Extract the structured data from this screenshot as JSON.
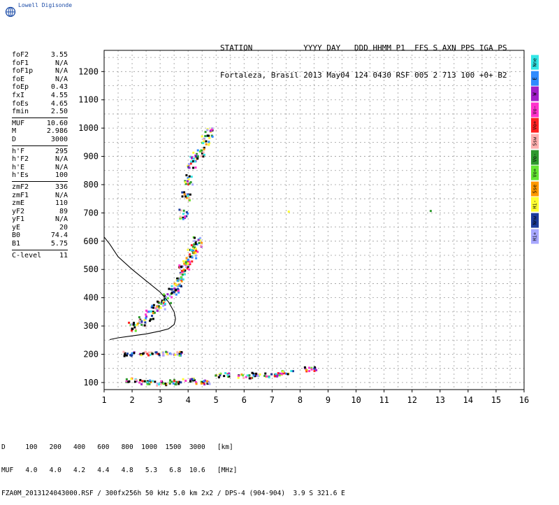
{
  "logo": {
    "text": "Lowell Digisonde"
  },
  "header": {
    "line1": "STATION           YYYY DAY   DDD HHMM P1  FFS S AXN PPS IGA PS",
    "line2": "Fortaleza, Brasil 2013 May04 124 0430 RSF 005 2 713 100 +0+ B2"
  },
  "params": {
    "group1": [
      {
        "k": "foF2",
        "v": "3.55"
      },
      {
        "k": "foF1",
        "v": "N/A"
      },
      {
        "k": "foF1p",
        "v": "N/A"
      },
      {
        "k": "foE",
        "v": "N/A"
      },
      {
        "k": "foEp",
        "v": "0.43"
      },
      {
        "k": "fxI",
        "v": "4.55"
      },
      {
        "k": "foEs",
        "v": "4.65"
      },
      {
        "k": "fmin",
        "v": "2.50"
      }
    ],
    "group2": [
      {
        "k": "MUF",
        "v": "10.60"
      },
      {
        "k": "M",
        "v": "2.986"
      },
      {
        "k": "D",
        "v": "3000"
      }
    ],
    "group3": [
      {
        "k": "h'F",
        "v": "295"
      },
      {
        "k": "h'F2",
        "v": "N/A"
      },
      {
        "k": "h'E",
        "v": "N/A"
      },
      {
        "k": "h'Es",
        "v": "100"
      }
    ],
    "group4": [
      {
        "k": "zmF2",
        "v": "336"
      },
      {
        "k": "zmF1",
        "v": "N/A"
      },
      {
        "k": "zmE",
        "v": "110"
      },
      {
        "k": "yF2",
        "v": "89"
      },
      {
        "k": "yF1",
        "v": "N/A"
      },
      {
        "k": "yE",
        "v": "20"
      },
      {
        "k": "B0",
        "v": "74.4"
      },
      {
        "k": "B1",
        "v": "5.75"
      }
    ],
    "group5": [
      {
        "k": "C-level",
        "v": "11"
      }
    ]
  },
  "legend_tabs": [
    {
      "label": "Nne",
      "color": "#33e6e6"
    },
    {
      "label": "E",
      "color": "#2e8bff"
    },
    {
      "label": "W",
      "color": "#a020c8"
    },
    {
      "label": "Vo-",
      "color": "#ff33cc"
    },
    {
      "label": "Vo+",
      "color": "#ff2222"
    },
    {
      "label": "Ssw",
      "color": "#ffb0b0"
    },
    {
      "label": "Vo-",
      "color": "#2e9a2e"
    },
    {
      "label": "Vo+",
      "color": "#66e633"
    },
    {
      "label": "Sse",
      "color": "#ff9900"
    },
    {
      "label": "Hi-",
      "color": "#ffff33"
    },
    {
      "label": "Nnw",
      "color": "#1c3c9c"
    },
    {
      "label": "Hi+",
      "color": "#a8a8ff"
    }
  ],
  "footer": {
    "line1": "D     100   200   400   600   800  1000  1500  3000   [km]",
    "line2": "MUF   4.0   4.0   4.2   4.4   4.8   5.3   6.8  10.6   [MHz]",
    "line3": "FZA0M_2013124043000.RSF / 300fx256h 50 kHz 5.0 km 2x2 / DPS-4 (904-904)  3.9 S 321.6 E"
  },
  "chart_data": {
    "type": "scatter",
    "title": "",
    "xlabel": "",
    "ylabel": "",
    "xlim": [
      1,
      16
    ],
    "ylim": [
      75,
      1275
    ],
    "x_ticks": [
      1,
      2,
      3,
      4,
      5,
      6,
      7,
      8,
      9,
      10,
      11,
      12,
      13,
      14,
      15,
      16
    ],
    "y_ticks": [
      100,
      200,
      300,
      400,
      500,
      600,
      700,
      800,
      900,
      1000,
      1100,
      1200
    ],
    "grid": true,
    "series": [
      {
        "points": [
          [
            2.0,
            300
          ],
          [
            2.3,
            320
          ],
          [
            2.6,
            340
          ],
          [
            2.8,
            360
          ],
          [
            3.0,
            380
          ],
          [
            3.2,
            400
          ],
          [
            3.4,
            420
          ],
          [
            3.5,
            440
          ],
          [
            3.6,
            460
          ],
          [
            3.7,
            480
          ],
          [
            3.8,
            500
          ],
          [
            3.9,
            520
          ],
          [
            4.0,
            540
          ],
          [
            4.1,
            560
          ],
          [
            4.2,
            580
          ],
          [
            4.3,
            600
          ],
          [
            3.8,
            700
          ],
          [
            3.9,
            760
          ],
          [
            4.0,
            820
          ],
          [
            4.1,
            880
          ],
          [
            4.2,
            900
          ],
          [
            4.4,
            920
          ],
          [
            4.6,
            960
          ],
          [
            4.7,
            990
          ],
          [
            2.0,
            110
          ],
          [
            2.5,
            105
          ],
          [
            3.0,
            100
          ],
          [
            3.5,
            105
          ],
          [
            4.0,
            110
          ],
          [
            4.5,
            105
          ],
          [
            5.2,
            130
          ],
          [
            6.0,
            125
          ],
          [
            6.5,
            130
          ],
          [
            7.0,
            130
          ],
          [
            7.5,
            140
          ],
          [
            8.3,
            150
          ],
          [
            1.8,
            205
          ],
          [
            2.5,
            205
          ],
          [
            3.0,
            205
          ],
          [
            3.5,
            205
          ],
          [
            7.5,
            710
          ],
          [
            12.5,
            710
          ]
        ]
      },
      {
        "type": "line",
        "points": [
          [
            1.0,
            615
          ],
          [
            1.2,
            590
          ],
          [
            1.5,
            545
          ],
          [
            2.0,
            500
          ],
          [
            2.5,
            460
          ],
          [
            3.0,
            420
          ],
          [
            3.3,
            385
          ],
          [
            3.5,
            350
          ],
          [
            3.55,
            325
          ],
          [
            3.5,
            305
          ],
          [
            3.3,
            290
          ],
          [
            3.0,
            282
          ],
          [
            2.5,
            272
          ],
          [
            2.0,
            265
          ],
          [
            1.5,
            258
          ],
          [
            1.2,
            252
          ]
        ]
      }
    ]
  }
}
